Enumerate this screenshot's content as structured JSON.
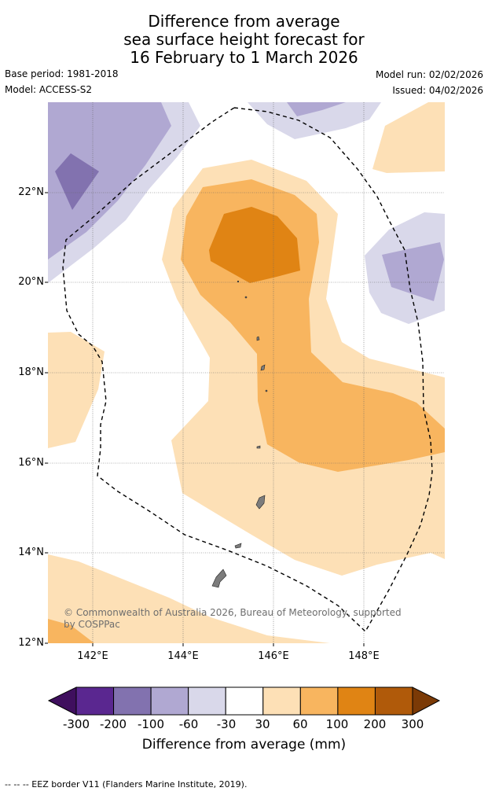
{
  "header": {
    "title_line1": "Difference from average",
    "title_line2": "sea surface height forecast for",
    "title_line3": "16 February to 1 March 2026",
    "base_period": "Base period: 1981-2018",
    "model": "Model: ACCESS-S2",
    "model_run": "Model run: 02/02/2026",
    "issued": "Issued: 04/02/2026"
  },
  "map": {
    "lat_labels": [
      "22°N",
      "20°N",
      "18°N",
      "16°N",
      "14°N",
      "12°N"
    ],
    "lon_labels": [
      "142°E",
      "144°E",
      "146°E",
      "148°E"
    ],
    "credit_line1": "© Commonwealth of Australia 2026, Bureau of Meteorology, supported",
    "credit_line2": "by COSPPac"
  },
  "colorbar": {
    "ticks": [
      "-300",
      "-200",
      "-100",
      "-60",
      "-30",
      "30",
      "60",
      "100",
      "200",
      "300"
    ],
    "colors": [
      "#3f0f5e",
      "#5a2790",
      "#8272af",
      "#b0a8d2",
      "#d9d8ea",
      "#ffffff",
      "#fde0b6",
      "#f8b55f",
      "#e08414",
      "#b05a0a",
      "#7b3a06"
    ],
    "title": "Difference from average (mm)"
  },
  "footer": {
    "legend_text": "--  --  -- EEZ border V11 (Flanders Marine Institute, 2019)."
  }
}
